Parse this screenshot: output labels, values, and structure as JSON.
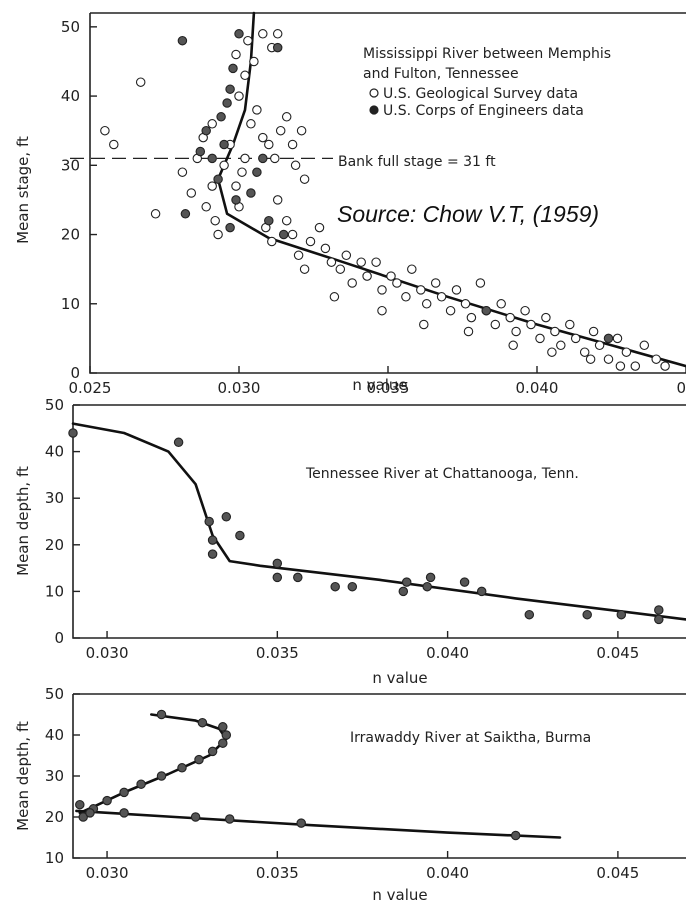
{
  "source_note": "Source: Chow V.T, (1959)",
  "chart_data": [
    {
      "type": "scatter",
      "title": "",
      "xlabel": "n value",
      "ylabel": "Mean stage, ft",
      "xlim": [
        0.025,
        0.045
      ],
      "ylim": [
        0,
        52
      ],
      "xticks": [
        "0.025",
        "0.030",
        "0.035",
        "0.040",
        "0"
      ],
      "yticks": [
        "0",
        "10",
        "20",
        "30",
        "40",
        "50"
      ],
      "annotations": [
        "Mississippi River between Memphis",
        "and Fulton, Tennessee",
        "U.S. Geological Survey data",
        "U.S. Corps of Engineers data",
        "Bank full stage = 31 ft"
      ],
      "hline": 31,
      "series": [
        {
          "name": "U.S. Geological Survey data",
          "marker": "open",
          "points": [
            [
              0.0255,
              35
            ],
            [
              0.0258,
              33
            ],
            [
              0.0267,
              42
            ],
            [
              0.0272,
              23
            ],
            [
              0.0281,
              29
            ],
            [
              0.0284,
              26
            ],
            [
              0.0286,
              31
            ],
            [
              0.0289,
              24
            ],
            [
              0.0291,
              27
            ],
            [
              0.0292,
              22
            ],
            [
              0.0293,
              20
            ],
            [
              0.0288,
              34
            ],
            [
              0.0291,
              36
            ],
            [
              0.0295,
              30
            ],
            [
              0.0297,
              33
            ],
            [
              0.0299,
              27
            ],
            [
              0.03,
              24
            ],
            [
              0.0301,
              29
            ],
            [
              0.0302,
              31
            ],
            [
              0.0304,
              36
            ],
            [
              0.0306,
              38
            ],
            [
              0.03,
              40
            ],
            [
              0.0302,
              43
            ],
            [
              0.0299,
              46
            ],
            [
              0.0303,
              48
            ],
            [
              0.0305,
              45
            ],
            [
              0.0308,
              49
            ],
            [
              0.0311,
              47
            ],
            [
              0.0313,
              49
            ],
            [
              0.0308,
              34
            ],
            [
              0.031,
              33
            ],
            [
              0.0312,
              31
            ],
            [
              0.0314,
              35
            ],
            [
              0.0316,
              37
            ],
            [
              0.0318,
              33
            ],
            [
              0.0319,
              30
            ],
            [
              0.0321,
              35
            ],
            [
              0.0322,
              28
            ],
            [
              0.0309,
              21
            ],
            [
              0.0311,
              19
            ],
            [
              0.0313,
              25
            ],
            [
              0.0316,
              22
            ],
            [
              0.0318,
              20
            ],
            [
              0.032,
              17
            ],
            [
              0.0322,
              15
            ],
            [
              0.0324,
              19
            ],
            [
              0.0327,
              21
            ],
            [
              0.0329,
              18
            ],
            [
              0.0331,
              16
            ],
            [
              0.0334,
              15
            ],
            [
              0.0336,
              17
            ],
            [
              0.0338,
              13
            ],
            [
              0.0341,
              16
            ],
            [
              0.0343,
              14
            ],
            [
              0.0346,
              16
            ],
            [
              0.0348,
              12
            ],
            [
              0.0351,
              14
            ],
            [
              0.0353,
              13
            ],
            [
              0.0356,
              11
            ],
            [
              0.0358,
              15
            ],
            [
              0.0361,
              12
            ],
            [
              0.0363,
              10
            ],
            [
              0.0366,
              13
            ],
            [
              0.0368,
              11
            ],
            [
              0.0371,
              9
            ],
            [
              0.0373,
              12
            ],
            [
              0.0376,
              10
            ],
            [
              0.0378,
              8
            ],
            [
              0.0381,
              13
            ],
            [
              0.0383,
              9
            ],
            [
              0.0386,
              7
            ],
            [
              0.0388,
              10
            ],
            [
              0.0391,
              8
            ],
            [
              0.0393,
              6
            ],
            [
              0.0396,
              9
            ],
            [
              0.0398,
              7
            ],
            [
              0.0401,
              5
            ],
            [
              0.0403,
              8
            ],
            [
              0.0406,
              6
            ],
            [
              0.0408,
              4
            ],
            [
              0.0411,
              7
            ],
            [
              0.0413,
              5
            ],
            [
              0.0416,
              3
            ],
            [
              0.0419,
              6
            ],
            [
              0.0421,
              4
            ],
            [
              0.0424,
              2
            ],
            [
              0.0427,
              5
            ],
            [
              0.043,
              3
            ],
            [
              0.0433,
              1
            ],
            [
              0.0436,
              4
            ],
            [
              0.044,
              2
            ],
            [
              0.0443,
              1
            ],
            [
              0.0332,
              11
            ],
            [
              0.0348,
              9
            ],
            [
              0.0362,
              7
            ],
            [
              0.0377,
              6
            ],
            [
              0.0392,
              4
            ],
            [
              0.0405,
              3
            ],
            [
              0.0418,
              2
            ],
            [
              0.0428,
              1
            ]
          ]
        },
        {
          "name": "U.S. Corps of Engineers data",
          "marker": "filled",
          "points": [
            [
              0.0281,
              48
            ],
            [
              0.0282,
              23
            ],
            [
              0.0287,
              32
            ],
            [
              0.0289,
              35
            ],
            [
              0.0291,
              31
            ],
            [
              0.0293,
              28
            ],
            [
              0.0295,
              33
            ],
            [
              0.0296,
              39
            ],
            [
              0.0297,
              41
            ],
            [
              0.0298,
              44
            ],
            [
              0.03,
              49
            ],
            [
              0.0294,
              37
            ],
            [
              0.0297,
              21
            ],
            [
              0.0299,
              25
            ],
            [
              0.0304,
              26
            ],
            [
              0.0306,
              29
            ],
            [
              0.0308,
              31
            ],
            [
              0.0313,
              47
            ],
            [
              0.0315,
              20
            ],
            [
              0.031,
              22
            ],
            [
              0.0383,
              9
            ],
            [
              0.0424,
              5
            ]
          ]
        }
      ],
      "curve": [
        [
          0.0305,
          52
        ],
        [
          0.0304,
          45
        ],
        [
          0.0302,
          38
        ],
        [
          0.0298,
          33
        ],
        [
          0.0293,
          28
        ],
        [
          0.0296,
          23
        ],
        [
          0.031,
          19.5
        ],
        [
          0.0335,
          16
        ],
        [
          0.037,
          11
        ],
        [
          0.04,
          7
        ],
        [
          0.0425,
          4
        ],
        [
          0.045,
          1
        ]
      ]
    },
    {
      "type": "scatter",
      "title": "",
      "xlabel": "n value",
      "ylabel": "Mean depth, ft",
      "xlim": [
        0.029,
        0.047
      ],
      "ylim": [
        0,
        50
      ],
      "xticks": [
        "0.030",
        "0.035",
        "0.040",
        "0.045"
      ],
      "yticks": [
        "0",
        "10",
        "20",
        "30",
        "40",
        "50"
      ],
      "annotations": [
        "Tennessee River at Chattanooga, Tenn."
      ],
      "series": [
        {
          "name": "",
          "marker": "filled",
          "points": [
            [
              0.029,
              44
            ],
            [
              0.0321,
              42
            ],
            [
              0.033,
              25
            ],
            [
              0.0331,
              21
            ],
            [
              0.0331,
              18
            ],
            [
              0.0335,
              26
            ],
            [
              0.0339,
              22
            ],
            [
              0.035,
              13
            ],
            [
              0.035,
              16
            ],
            [
              0.0356,
              13
            ],
            [
              0.0367,
              11
            ],
            [
              0.0372,
              11
            ],
            [
              0.0387,
              10
            ],
            [
              0.0388,
              12
            ],
            [
              0.0394,
              11
            ],
            [
              0.0395,
              13
            ],
            [
              0.0405,
              12
            ],
            [
              0.041,
              10
            ],
            [
              0.0424,
              5
            ],
            [
              0.0441,
              5
            ],
            [
              0.0451,
              5
            ],
            [
              0.0462,
              6
            ],
            [
              0.0462,
              4
            ]
          ]
        }
      ],
      "curve": [
        [
          0.029,
          46
        ],
        [
          0.0305,
          44
        ],
        [
          0.0318,
          40
        ],
        [
          0.0326,
          33
        ],
        [
          0.0331,
          22
        ],
        [
          0.0336,
          16.5
        ],
        [
          0.0345,
          15.5
        ],
        [
          0.038,
          12.5
        ],
        [
          0.042,
          8.5
        ],
        [
          0.047,
          4
        ]
      ]
    },
    {
      "type": "scatter",
      "title": "",
      "xlabel": "n value",
      "ylabel": "Mean depth, ft",
      "xlim": [
        0.029,
        0.047
      ],
      "ylim": [
        10,
        50
      ],
      "xticks": [
        "0.030",
        "0.035",
        "0.040",
        "0.045"
      ],
      "yticks": [
        "10",
        "20",
        "30",
        "40",
        "50"
      ],
      "annotations": [
        "Irrawaddy River at Saiktha, Burma"
      ],
      "series": [
        {
          "name": "",
          "marker": "filled",
          "points": [
            [
              0.0316,
              45
            ],
            [
              0.0328,
              43
            ],
            [
              0.0334,
              42
            ],
            [
              0.0335,
              40
            ],
            [
              0.0334,
              38
            ],
            [
              0.0331,
              36
            ],
            [
              0.0327,
              34
            ],
            [
              0.0322,
              32
            ],
            [
              0.0316,
              30
            ],
            [
              0.031,
              28
            ],
            [
              0.0305,
              26
            ],
            [
              0.03,
              24
            ],
            [
              0.0296,
              22
            ],
            [
              0.0293,
              20
            ],
            [
              0.0292,
              23
            ],
            [
              0.0295,
              21
            ],
            [
              0.0305,
              21
            ],
            [
              0.0326,
              20
            ],
            [
              0.0336,
              19.5
            ],
            [
              0.0357,
              18.5
            ],
            [
              0.042,
              15.5
            ]
          ]
        }
      ],
      "curves": [
        [
          [
            0.0313,
            45
          ],
          [
            0.0326,
            43.5
          ],
          [
            0.0333,
            41.5
          ],
          [
            0.0335,
            39
          ],
          [
            0.033,
            35
          ],
          [
            0.0318,
            30.5
          ],
          [
            0.0305,
            26
          ],
          [
            0.0296,
            22.5
          ],
          [
            0.0292,
            21
          ]
        ],
        [
          [
            0.0291,
            21.5
          ],
          [
            0.032,
            20
          ],
          [
            0.036,
            18
          ],
          [
            0.04,
            16.2
          ],
          [
            0.0433,
            15
          ]
        ]
      ]
    }
  ]
}
